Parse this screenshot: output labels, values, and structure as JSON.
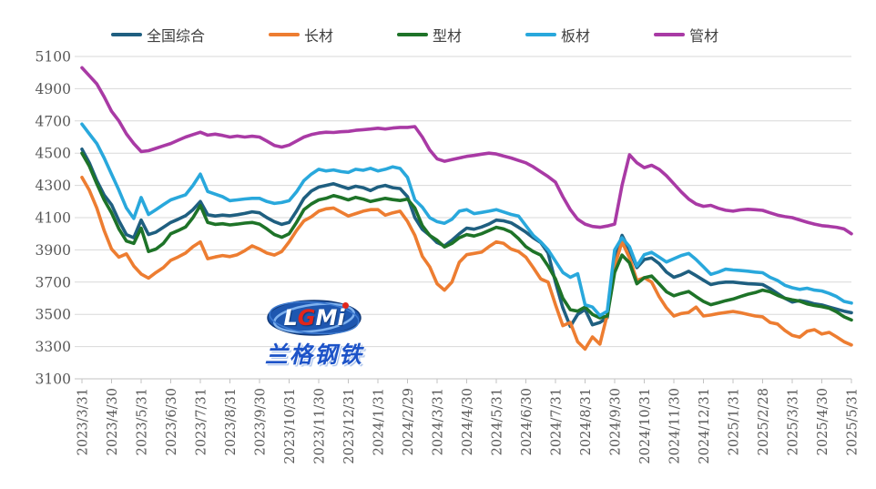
{
  "logo": {
    "letters": [
      {
        "t": "L",
        "c": "#ffffff"
      },
      {
        "t": "G",
        "c": "#e2261b"
      },
      {
        "t": "M",
        "c": "#ffffff"
      },
      {
        "t": "i",
        "c": "#ffffff"
      }
    ],
    "subtext": "兰格钢铁"
  },
  "axes": {
    "y_tick_color": "#595959",
    "x_tick_color": "#595959",
    "grid_color": "#d8d8d8",
    "axis_color": "#c3c3c3"
  },
  "chart_data": {
    "type": "line",
    "title": "",
    "xlabel": "",
    "ylabel": "",
    "grid": true,
    "legend_position": "top",
    "ylim": [
      3100,
      5100
    ],
    "y_ticks": [
      5100,
      4900,
      4700,
      4500,
      4300,
      4100,
      3900,
      3700,
      3500,
      3300,
      3100
    ],
    "x_labels": [
      "2023/3/31",
      "2023/4/30",
      "2023/5/31",
      "2023/6/30",
      "2023/7/31",
      "2023/8/31",
      "2023/9/30",
      "2023/10/31",
      "2023/11/30",
      "2023/12/31",
      "2024/1/31",
      "2024/2/29",
      "2024/3/31",
      "2024/4/30",
      "2024/5/31",
      "2024/6/30",
      "2024/7/31",
      "2024/8/31",
      "2024/9/30",
      "2024/10/31",
      "2024/11/30",
      "2024/12/31",
      "2025/1/31",
      "2025/2/28",
      "2025/3/31",
      "2025/4/30",
      "2025/5/31"
    ],
    "points_per_month": 4,
    "note": "weekly price data estimated from plot; 4 points per month interval, first point of each group falls on the month tick",
    "series": [
      {
        "name": "全国综合",
        "color": "#1f5f80",
        "values": [
          4525,
          4440,
          4330,
          4240,
          4180,
          4080,
          3995,
          3975,
          4085,
          3995,
          4010,
          4040,
          4070,
          4090,
          4112,
          4150,
          4200,
          4118,
          4110,
          4116,
          4112,
          4118,
          4126,
          4136,
          4130,
          4100,
          4075,
          4058,
          4070,
          4140,
          4220,
          4265,
          4290,
          4300,
          4310,
          4295,
          4280,
          4295,
          4286,
          4268,
          4290,
          4300,
          4286,
          4280,
          4230,
          4100,
          4027,
          3990,
          3945,
          3925,
          3960,
          4000,
          4035,
          4028,
          4042,
          4060,
          4085,
          4080,
          4068,
          4040,
          4010,
          3975,
          3945,
          3880,
          3700,
          3540,
          3425,
          3500,
          3530,
          3435,
          3450,
          3480,
          3850,
          3990,
          3900,
          3790,
          3840,
          3850,
          3815,
          3762,
          3730,
          3745,
          3767,
          3740,
          3712,
          3685,
          3695,
          3700,
          3700,
          3695,
          3690,
          3688,
          3685,
          3660,
          3630,
          3600,
          3576,
          3586,
          3578,
          3565,
          3558,
          3545,
          3532,
          3520,
          3510
        ]
      },
      {
        "name": "长材",
        "color": "#ed7d31",
        "values": [
          4350,
          4270,
          4160,
          4020,
          3905,
          3855,
          3875,
          3800,
          3750,
          3725,
          3760,
          3790,
          3835,
          3856,
          3880,
          3920,
          3950,
          3845,
          3856,
          3865,
          3858,
          3870,
          3895,
          3925,
          3905,
          3880,
          3868,
          3890,
          3950,
          4020,
          4080,
          4105,
          4140,
          4155,
          4160,
          4135,
          4110,
          4125,
          4140,
          4150,
          4150,
          4115,
          4130,
          4140,
          4077,
          3990,
          3860,
          3795,
          3690,
          3650,
          3700,
          3823,
          3870,
          3878,
          3886,
          3920,
          3950,
          3940,
          3905,
          3890,
          3855,
          3790,
          3720,
          3700,
          3560,
          3430,
          3450,
          3330,
          3285,
          3360,
          3315,
          3500,
          3800,
          3950,
          3850,
          3711,
          3727,
          3700,
          3610,
          3540,
          3490,
          3505,
          3512,
          3545,
          3490,
          3496,
          3505,
          3512,
          3518,
          3510,
          3500,
          3490,
          3485,
          3450,
          3440,
          3400,
          3370,
          3358,
          3395,
          3405,
          3378,
          3388,
          3360,
          3330,
          3310
        ]
      },
      {
        "name": "型材",
        "color": "#1e7328",
        "values": [
          4500,
          4420,
          4310,
          4210,
          4130,
          4030,
          3955,
          3940,
          4035,
          3890,
          3905,
          3940,
          4000,
          4020,
          4042,
          4100,
          4175,
          4070,
          4058,
          4062,
          4055,
          4060,
          4066,
          4070,
          4060,
          4030,
          3995,
          3978,
          4000,
          4070,
          4150,
          4185,
          4210,
          4220,
          4237,
          4225,
          4210,
          4226,
          4215,
          4200,
          4210,
          4220,
          4212,
          4206,
          4215,
          4160,
          4050,
          3990,
          3960,
          3918,
          3940,
          3975,
          3995,
          3986,
          4000,
          4020,
          4040,
          4030,
          4010,
          3970,
          3920,
          3890,
          3868,
          3800,
          3720,
          3600,
          3529,
          3520,
          3545,
          3500,
          3478,
          3490,
          3760,
          3868,
          3820,
          3690,
          3727,
          3738,
          3690,
          3640,
          3615,
          3630,
          3642,
          3610,
          3580,
          3560,
          3572,
          3585,
          3595,
          3610,
          3625,
          3635,
          3650,
          3640,
          3618,
          3600,
          3590,
          3582,
          3565,
          3555,
          3548,
          3538,
          3515,
          3485,
          3465
        ]
      },
      {
        "name": "板材",
        "color": "#29a8dc",
        "values": [
          4680,
          4620,
          4560,
          4470,
          4370,
          4270,
          4160,
          4095,
          4225,
          4120,
          4150,
          4180,
          4210,
          4226,
          4242,
          4300,
          4370,
          4262,
          4246,
          4230,
          4205,
          4210,
          4216,
          4220,
          4220,
          4200,
          4188,
          4194,
          4205,
          4260,
          4330,
          4370,
          4400,
          4390,
          4396,
          4386,
          4380,
          4400,
          4394,
          4406,
          4390,
          4400,
          4415,
          4405,
          4350,
          4210,
          4165,
          4100,
          4075,
          4065,
          4090,
          4140,
          4150,
          4125,
          4132,
          4140,
          4150,
          4135,
          4120,
          4110,
          4050,
          3990,
          3950,
          3900,
          3830,
          3760,
          3730,
          3752,
          3560,
          3545,
          3492,
          3520,
          3900,
          3975,
          3920,
          3800,
          3870,
          3885,
          3855,
          3825,
          3845,
          3865,
          3878,
          3840,
          3795,
          3748,
          3762,
          3780,
          3775,
          3772,
          3768,
          3762,
          3758,
          3730,
          3710,
          3680,
          3665,
          3655,
          3662,
          3650,
          3645,
          3630,
          3610,
          3580,
          3570
        ]
      },
      {
        "name": "管材",
        "color": "#a93aa5",
        "values": [
          5030,
          4980,
          4930,
          4850,
          4760,
          4700,
          4620,
          4560,
          4510,
          4515,
          4530,
          4545,
          4560,
          4580,
          4600,
          4615,
          4630,
          4612,
          4618,
          4610,
          4600,
          4606,
          4600,
          4605,
          4600,
          4575,
          4548,
          4538,
          4550,
          4575,
          4600,
          4615,
          4625,
          4630,
          4628,
          4633,
          4635,
          4642,
          4646,
          4650,
          4655,
          4650,
          4656,
          4660,
          4660,
          4665,
          4600,
          4520,
          4465,
          4450,
          4460,
          4470,
          4480,
          4486,
          4494,
          4500,
          4495,
          4482,
          4470,
          4455,
          4440,
          4415,
          4385,
          4355,
          4320,
          4230,
          4150,
          4090,
          4060,
          4045,
          4040,
          4048,
          4060,
          4300,
          4490,
          4440,
          4410,
          4425,
          4400,
          4360,
          4310,
          4260,
          4215,
          4185,
          4170,
          4176,
          4158,
          4146,
          4140,
          4148,
          4152,
          4149,
          4145,
          4130,
          4116,
          4106,
          4100,
          4086,
          4072,
          4060,
          4050,
          4046,
          4040,
          4030,
          4000
        ]
      }
    ]
  }
}
